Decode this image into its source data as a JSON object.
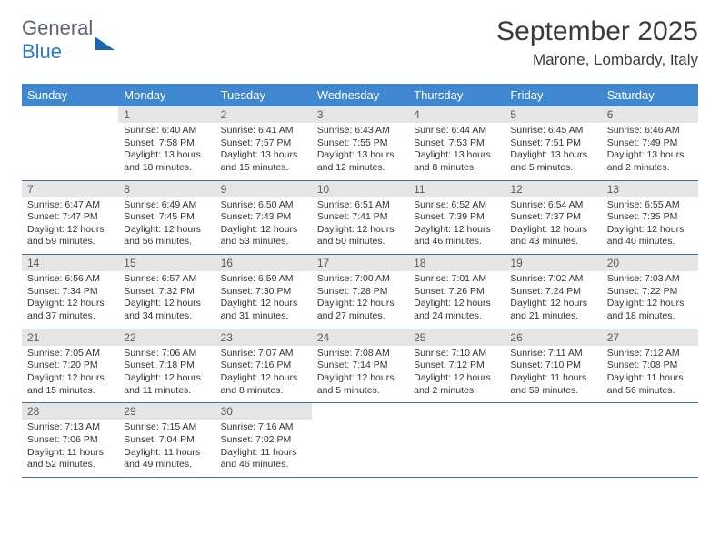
{
  "brand": {
    "word1": "General",
    "word2": "Blue"
  },
  "title": "September 2025",
  "location": "Marone, Lombardy, Italy",
  "colors": {
    "header_bg": "#3f87cf",
    "header_text": "#ffffff",
    "daynum_bg": "#e5e5e5",
    "daynum_text": "#5a5a5a",
    "rule": "#3f6fa5",
    "title_text": "#3a3a3a",
    "body_text": "#333333",
    "logo_gray": "#5a6570",
    "logo_blue": "#2f78c5"
  },
  "typography": {
    "title_fontsize": 30,
    "location_fontsize": 17,
    "dow_fontsize": 13,
    "daynum_fontsize": 12,
    "body_fontsize": 10.5
  },
  "days_of_week": [
    "Sunday",
    "Monday",
    "Tuesday",
    "Wednesday",
    "Thursday",
    "Friday",
    "Saturday"
  ],
  "grid": [
    [
      {
        "n": "",
        "sunrise": "",
        "sunset": "",
        "daylight": ""
      },
      {
        "n": "1",
        "sunrise": "Sunrise: 6:40 AM",
        "sunset": "Sunset: 7:58 PM",
        "daylight": "Daylight: 13 hours and 18 minutes."
      },
      {
        "n": "2",
        "sunrise": "Sunrise: 6:41 AM",
        "sunset": "Sunset: 7:57 PM",
        "daylight": "Daylight: 13 hours and 15 minutes."
      },
      {
        "n": "3",
        "sunrise": "Sunrise: 6:43 AM",
        "sunset": "Sunset: 7:55 PM",
        "daylight": "Daylight: 13 hours and 12 minutes."
      },
      {
        "n": "4",
        "sunrise": "Sunrise: 6:44 AM",
        "sunset": "Sunset: 7:53 PM",
        "daylight": "Daylight: 13 hours and 8 minutes."
      },
      {
        "n": "5",
        "sunrise": "Sunrise: 6:45 AM",
        "sunset": "Sunset: 7:51 PM",
        "daylight": "Daylight: 13 hours and 5 minutes."
      },
      {
        "n": "6",
        "sunrise": "Sunrise: 6:46 AM",
        "sunset": "Sunset: 7:49 PM",
        "daylight": "Daylight: 13 hours and 2 minutes."
      }
    ],
    [
      {
        "n": "7",
        "sunrise": "Sunrise: 6:47 AM",
        "sunset": "Sunset: 7:47 PM",
        "daylight": "Daylight: 12 hours and 59 minutes."
      },
      {
        "n": "8",
        "sunrise": "Sunrise: 6:49 AM",
        "sunset": "Sunset: 7:45 PM",
        "daylight": "Daylight: 12 hours and 56 minutes."
      },
      {
        "n": "9",
        "sunrise": "Sunrise: 6:50 AM",
        "sunset": "Sunset: 7:43 PM",
        "daylight": "Daylight: 12 hours and 53 minutes."
      },
      {
        "n": "10",
        "sunrise": "Sunrise: 6:51 AM",
        "sunset": "Sunset: 7:41 PM",
        "daylight": "Daylight: 12 hours and 50 minutes."
      },
      {
        "n": "11",
        "sunrise": "Sunrise: 6:52 AM",
        "sunset": "Sunset: 7:39 PM",
        "daylight": "Daylight: 12 hours and 46 minutes."
      },
      {
        "n": "12",
        "sunrise": "Sunrise: 6:54 AM",
        "sunset": "Sunset: 7:37 PM",
        "daylight": "Daylight: 12 hours and 43 minutes."
      },
      {
        "n": "13",
        "sunrise": "Sunrise: 6:55 AM",
        "sunset": "Sunset: 7:35 PM",
        "daylight": "Daylight: 12 hours and 40 minutes."
      }
    ],
    [
      {
        "n": "14",
        "sunrise": "Sunrise: 6:56 AM",
        "sunset": "Sunset: 7:34 PM",
        "daylight": "Daylight: 12 hours and 37 minutes."
      },
      {
        "n": "15",
        "sunrise": "Sunrise: 6:57 AM",
        "sunset": "Sunset: 7:32 PM",
        "daylight": "Daylight: 12 hours and 34 minutes."
      },
      {
        "n": "16",
        "sunrise": "Sunrise: 6:59 AM",
        "sunset": "Sunset: 7:30 PM",
        "daylight": "Daylight: 12 hours and 31 minutes."
      },
      {
        "n": "17",
        "sunrise": "Sunrise: 7:00 AM",
        "sunset": "Sunset: 7:28 PM",
        "daylight": "Daylight: 12 hours and 27 minutes."
      },
      {
        "n": "18",
        "sunrise": "Sunrise: 7:01 AM",
        "sunset": "Sunset: 7:26 PM",
        "daylight": "Daylight: 12 hours and 24 minutes."
      },
      {
        "n": "19",
        "sunrise": "Sunrise: 7:02 AM",
        "sunset": "Sunset: 7:24 PM",
        "daylight": "Daylight: 12 hours and 21 minutes."
      },
      {
        "n": "20",
        "sunrise": "Sunrise: 7:03 AM",
        "sunset": "Sunset: 7:22 PM",
        "daylight": "Daylight: 12 hours and 18 minutes."
      }
    ],
    [
      {
        "n": "21",
        "sunrise": "Sunrise: 7:05 AM",
        "sunset": "Sunset: 7:20 PM",
        "daylight": "Daylight: 12 hours and 15 minutes."
      },
      {
        "n": "22",
        "sunrise": "Sunrise: 7:06 AM",
        "sunset": "Sunset: 7:18 PM",
        "daylight": "Daylight: 12 hours and 11 minutes."
      },
      {
        "n": "23",
        "sunrise": "Sunrise: 7:07 AM",
        "sunset": "Sunset: 7:16 PM",
        "daylight": "Daylight: 12 hours and 8 minutes."
      },
      {
        "n": "24",
        "sunrise": "Sunrise: 7:08 AM",
        "sunset": "Sunset: 7:14 PM",
        "daylight": "Daylight: 12 hours and 5 minutes."
      },
      {
        "n": "25",
        "sunrise": "Sunrise: 7:10 AM",
        "sunset": "Sunset: 7:12 PM",
        "daylight": "Daylight: 12 hours and 2 minutes."
      },
      {
        "n": "26",
        "sunrise": "Sunrise: 7:11 AM",
        "sunset": "Sunset: 7:10 PM",
        "daylight": "Daylight: 11 hours and 59 minutes."
      },
      {
        "n": "27",
        "sunrise": "Sunrise: 7:12 AM",
        "sunset": "Sunset: 7:08 PM",
        "daylight": "Daylight: 11 hours and 56 minutes."
      }
    ],
    [
      {
        "n": "28",
        "sunrise": "Sunrise: 7:13 AM",
        "sunset": "Sunset: 7:06 PM",
        "daylight": "Daylight: 11 hours and 52 minutes."
      },
      {
        "n": "29",
        "sunrise": "Sunrise: 7:15 AM",
        "sunset": "Sunset: 7:04 PM",
        "daylight": "Daylight: 11 hours and 49 minutes."
      },
      {
        "n": "30",
        "sunrise": "Sunrise: 7:16 AM",
        "sunset": "Sunset: 7:02 PM",
        "daylight": "Daylight: 11 hours and 46 minutes."
      },
      {
        "n": "",
        "sunrise": "",
        "sunset": "",
        "daylight": ""
      },
      {
        "n": "",
        "sunrise": "",
        "sunset": "",
        "daylight": ""
      },
      {
        "n": "",
        "sunrise": "",
        "sunset": "",
        "daylight": ""
      },
      {
        "n": "",
        "sunrise": "",
        "sunset": "",
        "daylight": ""
      }
    ]
  ]
}
